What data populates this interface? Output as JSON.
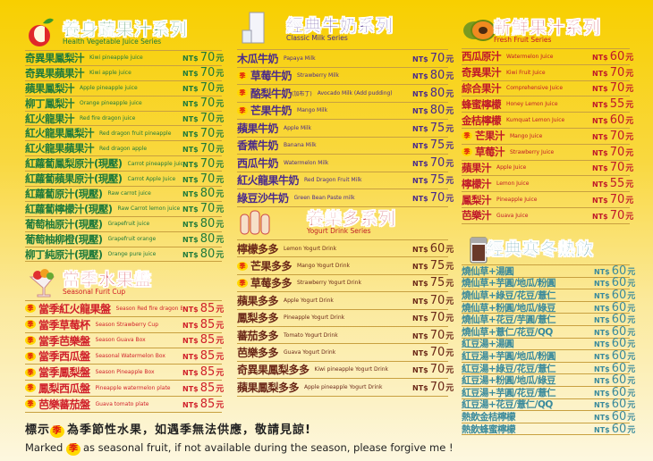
{
  "currency": "NT$",
  "unit": "元",
  "season_badge": "季",
  "sections": [
    {
      "id": "health",
      "title": "養身蔬果汁系列",
      "subtitle": "Health Vegetable Juice Series",
      "icon": "apple-icon",
      "color": "#1f7a3b",
      "title_color": "#1f7a3b",
      "items": [
        {
          "zh": "奇異果鳳梨汁",
          "en": "Kiwi pineapple juice",
          "price": "70"
        },
        {
          "zh": "奇異果蘋果汁",
          "en": "Kiwi apple juice",
          "price": "70"
        },
        {
          "zh": "蘋果鳳梨汁",
          "en": "Apple pineapple juice",
          "price": "70"
        },
        {
          "zh": "柳丁鳳梨汁",
          "en": "Orange pineapple juice",
          "price": "70"
        },
        {
          "zh": "紅火龍果汁",
          "en": "Red fire dragon juice",
          "price": "70"
        },
        {
          "zh": "紅火龍果鳳梨汁",
          "en": "Red dragon fruit pineapple",
          "price": "70"
        },
        {
          "zh": "紅火龍果蘋果汁",
          "en": "Red dragon apple",
          "price": "70"
        },
        {
          "zh": "紅蘿蔔鳳梨原汁(現壓)",
          "en": "Carrot pineapple juice",
          "price": "70"
        },
        {
          "zh": "紅蘿蔔蘋果原汁(現壓)",
          "en": "Carrot Apple Juice",
          "price": "70"
        },
        {
          "zh": "紅蘿蔔原汁(現壓)",
          "en": "Raw carrot juice",
          "price": "80"
        },
        {
          "zh": "紅蘿蔔檸檬汁(現壓)",
          "en": "Raw Carrot lemon juice",
          "price": "70"
        },
        {
          "zh": "葡萄柚原汁(現壓)",
          "en": "Grapefruit juice",
          "price": "80"
        },
        {
          "zh": "葡萄柚柳橙(現壓)",
          "en": "Grapefruit orange",
          "price": "80"
        },
        {
          "zh": "柳丁純原汁(現壓)",
          "en": "Orange pure juice",
          "price": "80"
        }
      ]
    },
    {
      "id": "seasonal",
      "title": "當季水果盤",
      "subtitle": "Seasonal Furit Cup",
      "icon": "fruit-cup-icon",
      "color": "#d0202a",
      "title_color": "#d0202a",
      "items": [
        {
          "zh": "當季紅火龍果盤",
          "en": "Season Red fire dragon Box",
          "price": "85",
          "seasonal": true
        },
        {
          "zh": "當季草莓杯",
          "en": "Season  Strawberry Cup",
          "price": "85",
          "seasonal": true
        },
        {
          "zh": "當季芭樂盤",
          "en": "Season Guava Box",
          "price": "85",
          "seasonal": true
        },
        {
          "zh": "當季西瓜盤",
          "en": "Seasonal Watermelon Box",
          "price": "85",
          "seasonal": true
        },
        {
          "zh": "當季鳳梨盤",
          "en": "Season Pineapple Box",
          "price": "85",
          "seasonal": true
        },
        {
          "zh": "鳳梨西瓜盤",
          "en": "Pineapple watermelon plate",
          "price": "85",
          "seasonal": true
        },
        {
          "zh": "芭樂蕃茄盤",
          "en": "Guava tomato plate",
          "price": "85",
          "seasonal": true
        }
      ]
    },
    {
      "id": "milk",
      "title": "經典牛奶系列",
      "subtitle": "Classic Milk Series",
      "icon": "milk-carton-icon",
      "color": "#4a2a8c",
      "title_color": "#4a2a8c",
      "items": [
        {
          "zh": "木瓜牛奶",
          "en": "Papaya  Milk",
          "price": "70"
        },
        {
          "zh": "草莓牛奶",
          "en": "Strawberry Milk",
          "price": "80",
          "seasonal": true
        },
        {
          "zh": "酪梨牛奶",
          "extra": "(加布丁)",
          "en": "Avocado Milk    (Add pudding)",
          "price": "80",
          "seasonal": true
        },
        {
          "zh": "芒果牛奶",
          "en": "Mango Milk",
          "price": "80",
          "seasonal": true
        },
        {
          "zh": "蘋果牛奶",
          "en": "Apple Milk",
          "price": "75"
        },
        {
          "zh": "香蕉牛奶",
          "en": "Banana Milk",
          "price": "75"
        },
        {
          "zh": "西瓜牛奶",
          "en": "Watermelon Milk",
          "price": "70"
        },
        {
          "zh": "紅火龍果牛奶",
          "en": "Red Dragon Fruit Milk",
          "price": "75"
        },
        {
          "zh": "綠豆沙牛奶",
          "en": "Green Bean Paste milk",
          "price": "70"
        }
      ]
    },
    {
      "id": "yogurt",
      "title": "養樂多系列",
      "subtitle": "Yogurt Drink Series",
      "icon": "yogurt-bottles-icon",
      "color": "#6b2818",
      "title_color": "#c0202a",
      "items": [
        {
          "zh": "檸檬多多",
          "en": "Lemon Yogurt Drink",
          "price": "60"
        },
        {
          "zh": "芒果多多",
          "en": "Mango Yogurt Drink",
          "price": "75",
          "seasonal": true
        },
        {
          "zh": "草莓多多",
          "en": "Strawberry Yogurt Drink",
          "price": "75",
          "seasonal": true
        },
        {
          "zh": "蘋果多多",
          "en": "Apple Yogurt Drink",
          "price": "70"
        },
        {
          "zh": "鳳梨多多",
          "en": "Pineapple Yogurt Drink",
          "price": "70"
        },
        {
          "zh": "蕃茄多多",
          "en": "Tomato Yogurt Drink",
          "price": "70"
        },
        {
          "zh": "芭樂多多",
          "en": "Guava Yogurt Drink",
          "price": "70"
        },
        {
          "zh": "奇異果鳳梨多多",
          "en": "Kiwi pineapple Yogurt Drink",
          "price": "70"
        },
        {
          "zh": "蘋果鳳梨多多",
          "en": "Apple pineapple Yogurt Drink",
          "price": "70"
        }
      ]
    },
    {
      "id": "fresh",
      "title": "新鮮果汁系列",
      "subtitle": "Fresh Fruit Series",
      "icon": "papaya-icon",
      "color": "#c0182a",
      "title_color": "#c0182a",
      "items": [
        {
          "zh": "西瓜原汁",
          "en": "Watermelon Juice",
          "price": "60"
        },
        {
          "zh": "奇異果汁",
          "en": "Kiwi Fruit Juice",
          "price": "70"
        },
        {
          "zh": "綜合果汁",
          "en": "Comprehensive Juice",
          "price": "70"
        },
        {
          "zh": "蜂蜜檸檬",
          "en": "Honey Lemon Juice",
          "price": "55"
        },
        {
          "zh": "金桔檸檬",
          "en": "Kumquat Lemon Juice",
          "price": "60"
        },
        {
          "zh": "芒果汁",
          "en": "Mango Juice",
          "price": "70",
          "seasonal": true
        },
        {
          "zh": "草莓汁",
          "en": "Strawberry Juice",
          "price": "70",
          "seasonal": true
        },
        {
          "zh": "蘋果汁",
          "en": "Apple Juice",
          "price": "70"
        },
        {
          "zh": "檸檬汁",
          "en": "Lemon Juice",
          "price": "55"
        },
        {
          "zh": "鳳梨汁",
          "en": "Pineapple Juice",
          "price": "70"
        },
        {
          "zh": "芭樂汁",
          "en": "Guava Juice",
          "price": "70"
        }
      ]
    },
    {
      "id": "winter",
      "title": "經典寒冬熱飲",
      "subtitle": "",
      "icon": "hot-drink-cup-icon",
      "color": "#3a8a9c",
      "title_color": "#3a8a9c",
      "items": [
        {
          "zh": "燒仙草+湯圓",
          "price": "60"
        },
        {
          "zh": "燒仙草+芋圓/地瓜/粉圓",
          "price": "60"
        },
        {
          "zh": "燒仙草+綠豆/花豆/薏仁",
          "price": "60"
        },
        {
          "zh": "燒仙草+粉圓/地瓜/綠豆",
          "price": "60"
        },
        {
          "zh": "燒仙草+花豆/芋圓/薏仁",
          "price": "60"
        },
        {
          "zh": "燒仙草+薏仁/花豆/QQ",
          "price": "60"
        },
        {
          "zh": "紅豆湯+湯圓",
          "price": "60"
        },
        {
          "zh": "紅豆湯+芋圓/地瓜/粉圓",
          "price": "60"
        },
        {
          "zh": "紅豆湯+綠豆/花豆/薏仁",
          "price": "60"
        },
        {
          "zh": "紅豆湯+粉圓/地瓜/綠豆",
          "price": "60"
        },
        {
          "zh": "紅豆湯+芋圓/花豆/薏仁",
          "price": "60"
        },
        {
          "zh": "紅豆湯+花豆/薏仁/QQ",
          "price": "60"
        },
        {
          "zh": "熱飲金桔檸檬",
          "price": "60"
        },
        {
          "zh": "熱飲蜂蜜檸檬",
          "price": "60"
        }
      ]
    }
  ],
  "footer": {
    "zh_prefix": "標示",
    "zh_suffix": "為季節性水果，如遇季無法供應，敬請見諒!",
    "en_prefix": "Marked",
    "en_suffix": "as  seasonal fruit, if  not  available  during the season, please forgive me !"
  }
}
